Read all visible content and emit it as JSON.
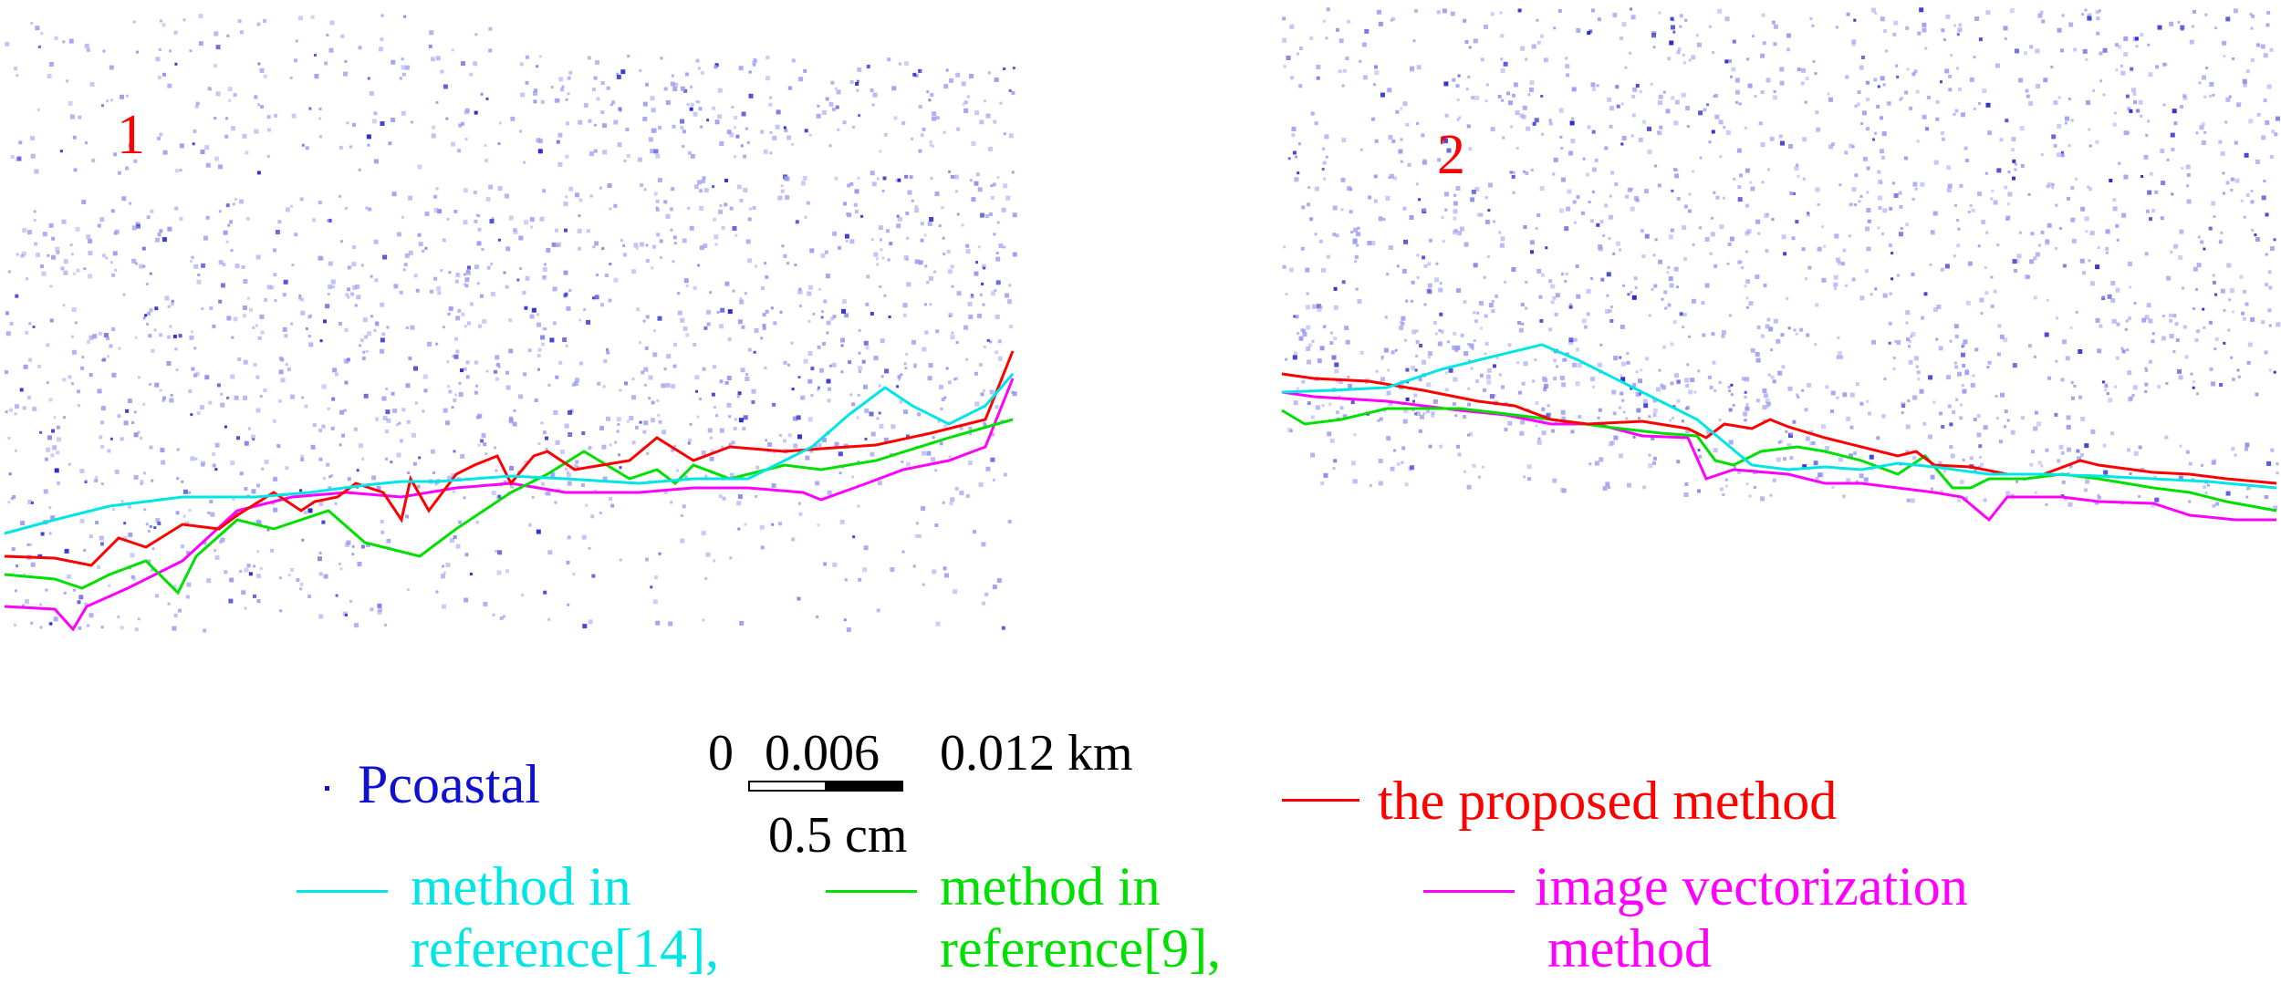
{
  "panels": [
    {
      "label": "1"
    },
    {
      "label": "2"
    }
  ],
  "legend": {
    "points": {
      "label": "Pcoastal",
      "color": "#1010d0"
    },
    "proposed": {
      "label": "the proposed method",
      "color": "#ff0000"
    },
    "ref14": {
      "line1": "method in",
      "line2": "reference[14],",
      "color": "#00e5e5"
    },
    "ref9": {
      "line1": "method in",
      "line2": "reference[9],",
      "color": "#00e000"
    },
    "vector": {
      "line1": "image vectorization",
      "line2": "method",
      "color": "#ff00ff"
    }
  },
  "scalebar": {
    "ticks": [
      "0",
      "0.006",
      "0.012 km"
    ],
    "note": "0.5 cm"
  },
  "colors": {
    "panel_label": "#ff0000",
    "points": "#8888ee"
  }
}
